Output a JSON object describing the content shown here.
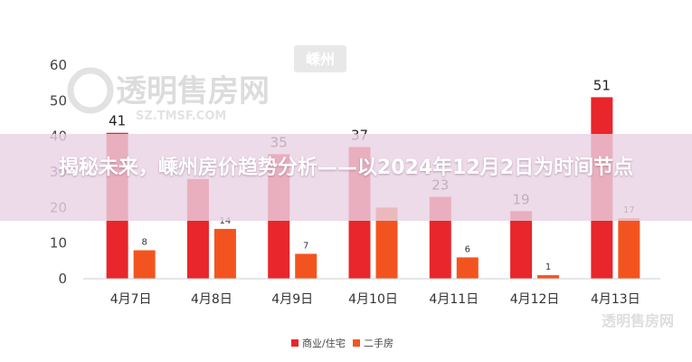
{
  "headline": "揭秘未来，嵊州房价趋势分析——以2024年12月2日为时间节点",
  "watermark": {
    "brand": "透明售房网",
    "url": "SZ.TMSF.COM",
    "city_badge": "嵊州",
    "bottom_right": "透明售房网"
  },
  "chart_data": {
    "type": "bar",
    "categories": [
      "4月7日",
      "4月8日",
      "4月9日",
      "4月10日",
      "4月11日",
      "4月12日",
      "4月13日"
    ],
    "series": [
      {
        "name": "商业/住宅",
        "values": [
          41,
          28,
          35,
          37,
          23,
          19,
          51
        ],
        "color": "#e8262b"
      },
      {
        "name": "二手房",
        "values": [
          8,
          14,
          7,
          20,
          6,
          1,
          17
        ],
        "color": "#f3541f"
      }
    ],
    "data_labels": {
      "series0": [
        "41",
        "",
        "35",
        "37",
        "23",
        "19",
        "51"
      ],
      "series1": [
        "8",
        "14",
        "7",
        "",
        "6",
        "1",
        "17"
      ]
    },
    "ylim": [
      0,
      60
    ],
    "yticks": [
      0,
      10,
      20,
      30,
      40,
      50,
      60
    ],
    "grid": false,
    "legend": "bottom-center"
  }
}
